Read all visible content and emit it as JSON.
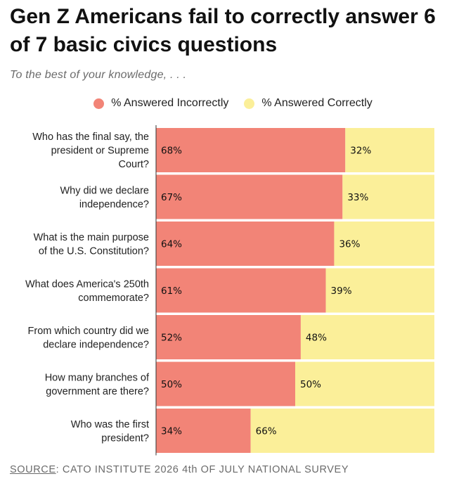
{
  "title": "Gen Z Americans fail to correctly answer 6 of 7 basic civics questions",
  "subtitle": "To the best of your knowledge, . . .",
  "legend": [
    {
      "label": "% Answered Incorrectly",
      "color": "#f28477"
    },
    {
      "label": "% Answered Correctly",
      "color": "#fbef99"
    }
  ],
  "source": {
    "label": "SOURCE",
    "text": ": CATO INSTITUTE 2026 4th OF JULY NATIONAL SURVEY"
  },
  "chart_data": {
    "type": "bar",
    "orientation": "horizontal",
    "stacked": true,
    "categories": [
      "Who has the final say, the president or Supreme Court?",
      "Why did we declare independence?",
      "What is the main purpose of the U.S. Constitution?",
      "What does America's 250th commemorate?",
      "From which country did we declare independence?",
      "How many branches of government are there?",
      "Who was the first president?"
    ],
    "category_lines": [
      [
        "Who has the final say, the",
        "president or Supreme",
        "Court?"
      ],
      [
        "Why did we declare",
        "independence?"
      ],
      [
        "What is the main purpose",
        "of the U.S. Constitution?"
      ],
      [
        "What does America's 250th",
        "commemorate?"
      ],
      [
        "From which country did we",
        "declare independence?"
      ],
      [
        "How many branches of",
        "government are there?"
      ],
      [
        "Who was the first",
        "president?"
      ]
    ],
    "series": [
      {
        "name": "% Answered Incorrectly",
        "color": "#f28477",
        "values": [
          68,
          67,
          64,
          61,
          52,
          50,
          34
        ],
        "labels": [
          "68%",
          "67%",
          "64%",
          "61%",
          "52%",
          "50%",
          "34%"
        ]
      },
      {
        "name": "% Answered Correctly",
        "color": "#fbef99",
        "values": [
          32,
          33,
          36,
          39,
          48,
          50,
          66
        ],
        "labels": [
          "32%",
          "33%",
          "36%",
          "39%",
          "48%",
          "50%",
          "66%"
        ]
      }
    ],
    "xlim": [
      0,
      100
    ],
    "grid": false,
    "legend_position": "top-center"
  }
}
